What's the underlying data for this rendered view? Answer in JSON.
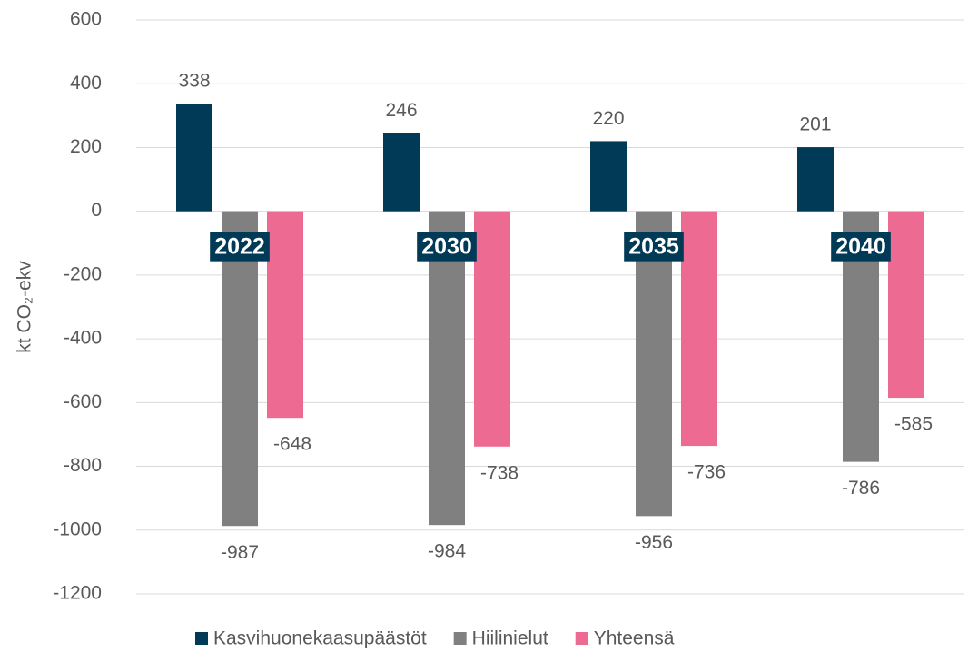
{
  "chart_data": {
    "type": "bar",
    "y_label": "kt CO₂-ekv",
    "categories": [
      "2022",
      "2030",
      "2035",
      "2040"
    ],
    "series": [
      {
        "name": "Kasvihuonekaasupäästöt",
        "color": "#003a57",
        "values": [
          338,
          246,
          220,
          201
        ]
      },
      {
        "name": "Hiilinielut",
        "color": "#808080",
        "values": [
          -987,
          -984,
          -956,
          -786
        ]
      },
      {
        "name": "Yhteensä",
        "color": "#ed6a93",
        "values": [
          -648,
          -738,
          -736,
          -585
        ]
      }
    ],
    "ylim": [
      -1200,
      600
    ],
    "yticks": [
      -1200,
      -1000,
      -800,
      -600,
      -400,
      -200,
      0,
      200,
      400,
      600
    ],
    "grid": true,
    "legend": "bottom"
  }
}
